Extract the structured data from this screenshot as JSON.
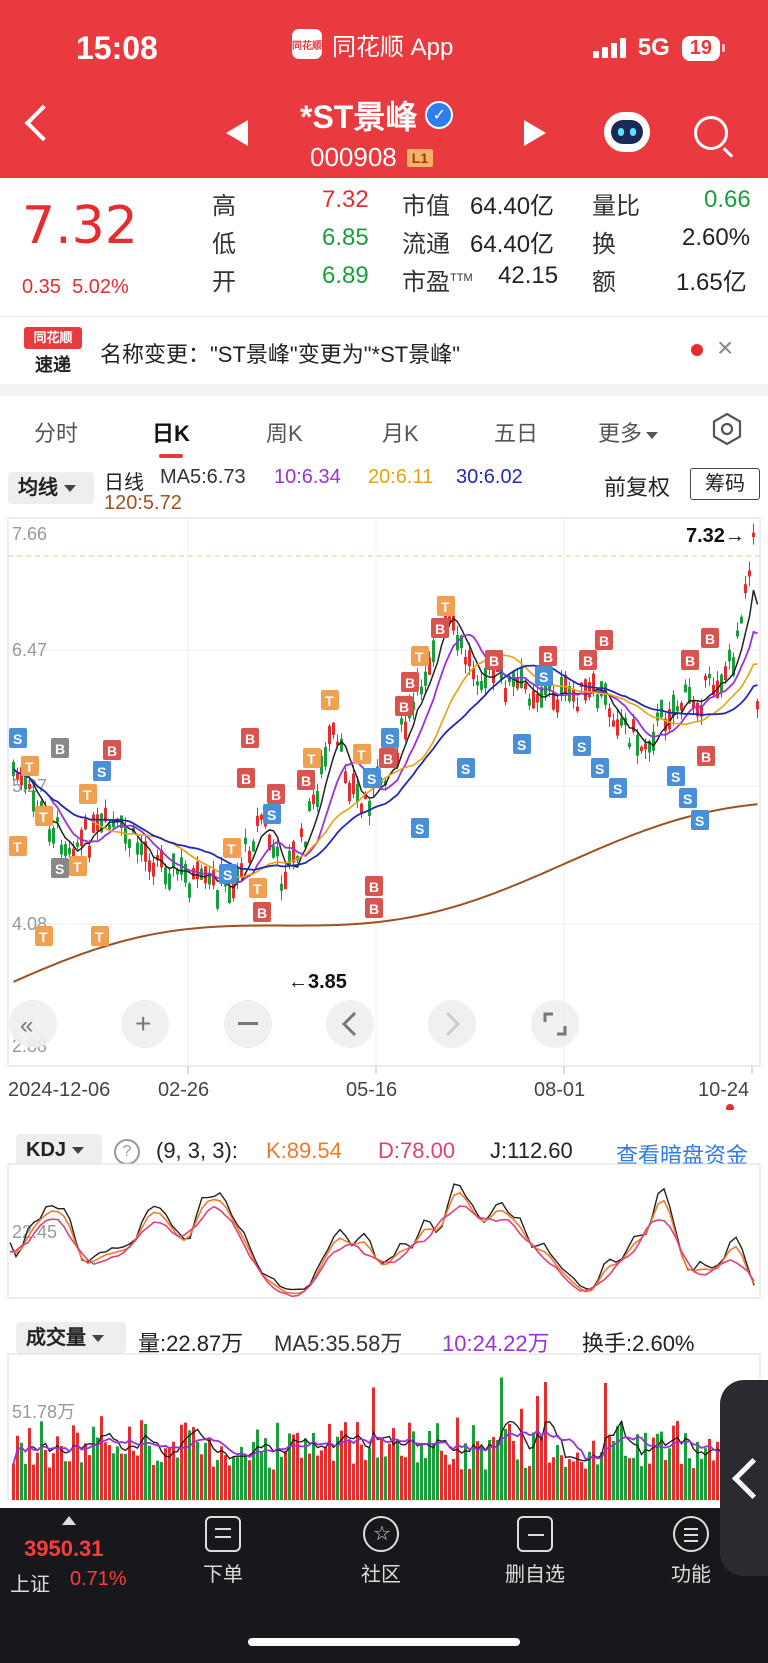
{
  "status": {
    "time": "15:08",
    "app": "同花顺 App",
    "app_logo": "同花顺",
    "network": "5G",
    "battery": "19"
  },
  "header": {
    "name": "*ST景峰",
    "code": "000908",
    "level": "L1"
  },
  "quote": {
    "price": "7.32",
    "change": "0.35",
    "change_pct": "5.02%",
    "high_label": "高",
    "high": "7.32",
    "low_label": "低",
    "low": "6.85",
    "open_label": "开",
    "open": "6.89",
    "mktcap_label": "市值",
    "mktcap": "64.40亿",
    "float_label": "流通",
    "float": "64.40亿",
    "pe_label": "市盈",
    "pe_sup": "TTM",
    "pe": "42.15",
    "vr_label": "量比",
    "vr": "0.66",
    "turnover_label": "换",
    "turnover": "2.60%",
    "amount_label": "额",
    "amount": "1.65亿"
  },
  "news": {
    "logo_top": "同花顺",
    "logo_bottom": "速递",
    "text": "名称变更：\"ST景峰\"变更为\"*ST景峰\"",
    "close": "×"
  },
  "tabs": [
    "分时",
    "日K",
    "周K",
    "月K",
    "五日",
    "更多"
  ],
  "ma": {
    "toggle": "均线",
    "period": "日线",
    "ma5": "MA5:6.73",
    "ma10": "10:6.34",
    "ma20": "20:6.11",
    "ma30": "30:6.02",
    "ma120": "120:5.72",
    "fq": "前复权",
    "chips": "筹码"
  },
  "kline": {
    "y_top": "7.66",
    "y_mid": "6.47",
    "y_low2": "5.27",
    "y_low": "4.08",
    "y_bottom": "2.88",
    "hi_marker": "7.32→",
    "lo_marker": "←3.85",
    "dates": [
      "2024-12-06",
      "02-26",
      "05-16",
      "08-01",
      "10-24"
    ]
  },
  "kdj": {
    "label": "KDJ",
    "help": "?",
    "params": "(9, 3, 3):",
    "k": "K:89.54",
    "d": "D:78.00",
    "j": "J:112.60",
    "link": "查看暗盘资金",
    "axis": "22.45"
  },
  "volume": {
    "label": "成交量",
    "vol": "量:22.87万",
    "ma5": "MA5:35.58万",
    "ma10": "10:24.22万",
    "turnover": "换手:2.60%",
    "axis": "51.78万"
  },
  "bottom": {
    "index_value": "3950.31",
    "index_name": "上证",
    "index_pct": "0.71%",
    "nav": [
      "下单",
      "社区",
      "删自选",
      "功能"
    ]
  },
  "colors": {
    "header": "#e93b3f",
    "up": "#e62c2c",
    "down": "#1a9e3c",
    "ma5": "#222222",
    "ma10": "#9b30d9",
    "ma20": "#e8a20c",
    "ma30": "#1f2bb0",
    "ma120": "#a0501e"
  }
}
